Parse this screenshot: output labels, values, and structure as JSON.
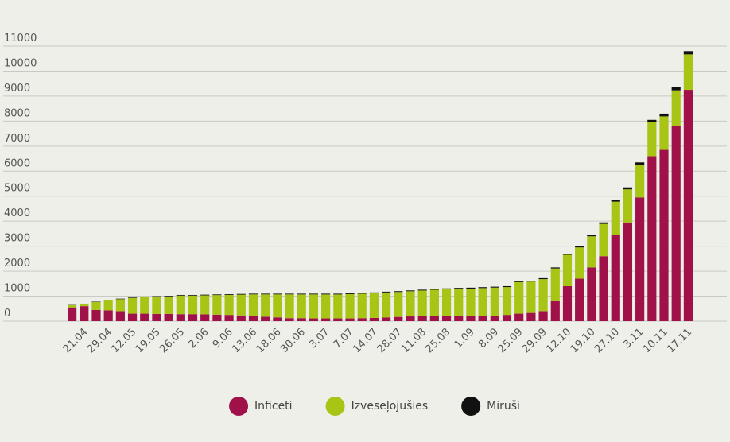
{
  "chart_data": {
    "type": "stacked_bar",
    "categories": [
      null,
      "21.04",
      null,
      "29.04",
      null,
      "12.05",
      null,
      "19.05",
      null,
      "26.05",
      null,
      "2.06",
      null,
      "9.06",
      null,
      "13.06",
      null,
      "18.06",
      null,
      "30.06",
      null,
      "3.07",
      null,
      "7.07",
      null,
      "14.07",
      null,
      "28.07",
      null,
      "11.08",
      null,
      "25.08",
      null,
      "1.09",
      null,
      "8.09",
      null,
      "25.09",
      null,
      "29.09",
      null,
      "12.10",
      null,
      "19.10",
      null,
      "27.10",
      null,
      "3.11",
      null,
      "10.11",
      null,
      "17.11"
    ],
    "series": [
      {
        "name": "Inficēti",
        "color": "#a0114a",
        "values": [
          550,
          600,
          450,
          430,
          400,
          300,
          300,
          290,
          290,
          280,
          280,
          270,
          260,
          250,
          230,
          200,
          180,
          150,
          120,
          120,
          110,
          110,
          110,
          110,
          120,
          130,
          150,
          170,
          190,
          210,
          220,
          220,
          220,
          220,
          210,
          200,
          250,
          300,
          330,
          400,
          800,
          1400,
          1700,
          2150,
          2600,
          3450,
          3950,
          4950,
          6600,
          6850,
          7800,
          9250
        ]
      },
      {
        "name": "Izveseļojušies",
        "color": "#a8c414",
        "values": [
          90,
          88,
          315,
          402,
          480,
          630,
          658,
          688,
          696,
          745,
          745,
          764,
          784,
          803,
          833,
          872,
          892,
          922,
          952,
          951,
          961,
          960,
          960,
          970,
          979,
          989,
          999,
          998,
          1008,
          1017,
          1036,
          1055,
          1075,
          1084,
          1114,
          1144,
          1114,
          1263,
          1253,
          1282,
          1310,
          1255,
          1250,
          1245,
          1290,
          1330,
          1320,
          1310,
          1350,
          1340,
          1430,
          1420
        ]
      },
      {
        "name": "Miruši",
        "color": "#111111",
        "values": [
          10,
          12,
          15,
          18,
          20,
          20,
          22,
          22,
          24,
          25,
          25,
          26,
          26,
          27,
          27,
          28,
          28,
          28,
          28,
          29,
          29,
          30,
          30,
          30,
          31,
          31,
          31,
          32,
          32,
          33,
          34,
          35,
          35,
          36,
          36,
          36,
          36,
          37,
          37,
          38,
          40,
          45,
          50,
          55,
          60,
          70,
          80,
          90,
          100,
          110,
          120,
          130
        ]
      }
    ],
    "ylim": [
      0,
      11000
    ],
    "yticks": [
      0,
      1000,
      2000,
      3000,
      4000,
      5000,
      6000,
      7000,
      8000,
      9000,
      10000,
      11000
    ],
    "grid": true,
    "legend": "bottom"
  }
}
